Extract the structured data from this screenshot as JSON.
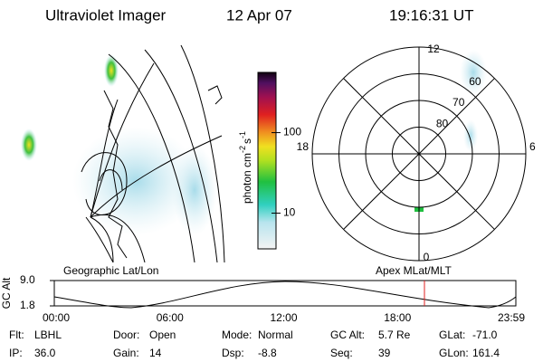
{
  "header": {
    "title": "Ultraviolet Imager",
    "date": "12 Apr 07",
    "time": "19:16:31 UT"
  },
  "geo_map": {
    "label": "Geographic Lat/Lon"
  },
  "colorbar": {
    "label_parts": [
      "photon cm",
      "-2",
      "s",
      "-1"
    ],
    "log_scale": true,
    "lim": [
      3.6,
      560
    ],
    "ticks": [
      10,
      100
    ]
  },
  "polar_map": {
    "label": "Apex MLat/MLT",
    "rlim": [
      90,
      50
    ],
    "lat_circles": [
      60,
      70,
      80
    ],
    "mlt_labels": [
      12,
      18,
      6,
      0
    ]
  },
  "altitude_plot": {
    "ylabel": "GC Alt",
    "ylim": [
      1.8,
      9
    ],
    "yticks": [
      {
        "value": 9,
        "label": "9.0"
      },
      {
        "value": 1.8,
        "label": "1.8"
      }
    ],
    "xticks": [
      "00:00",
      "06:00",
      "12:00",
      "18:00",
      "23:59"
    ]
  },
  "status": [
    [
      [
        "Flt:",
        "LBHL"
      ],
      [
        "Door:",
        "Open"
      ],
      [
        "Mode:",
        "Normal"
      ],
      [
        "GC Alt:",
        "5.7 Re"
      ],
      [
        "GLat:",
        "-71.0"
      ]
    ],
    [
      [
        "IP:",
        "36.0"
      ],
      [
        "Gain:",
        "14"
      ],
      [
        "Dsp:",
        "-8.8"
      ],
      [
        "Seq:",
        "39"
      ],
      [
        "GLon:",
        "161.4"
      ]
    ]
  ]
}
